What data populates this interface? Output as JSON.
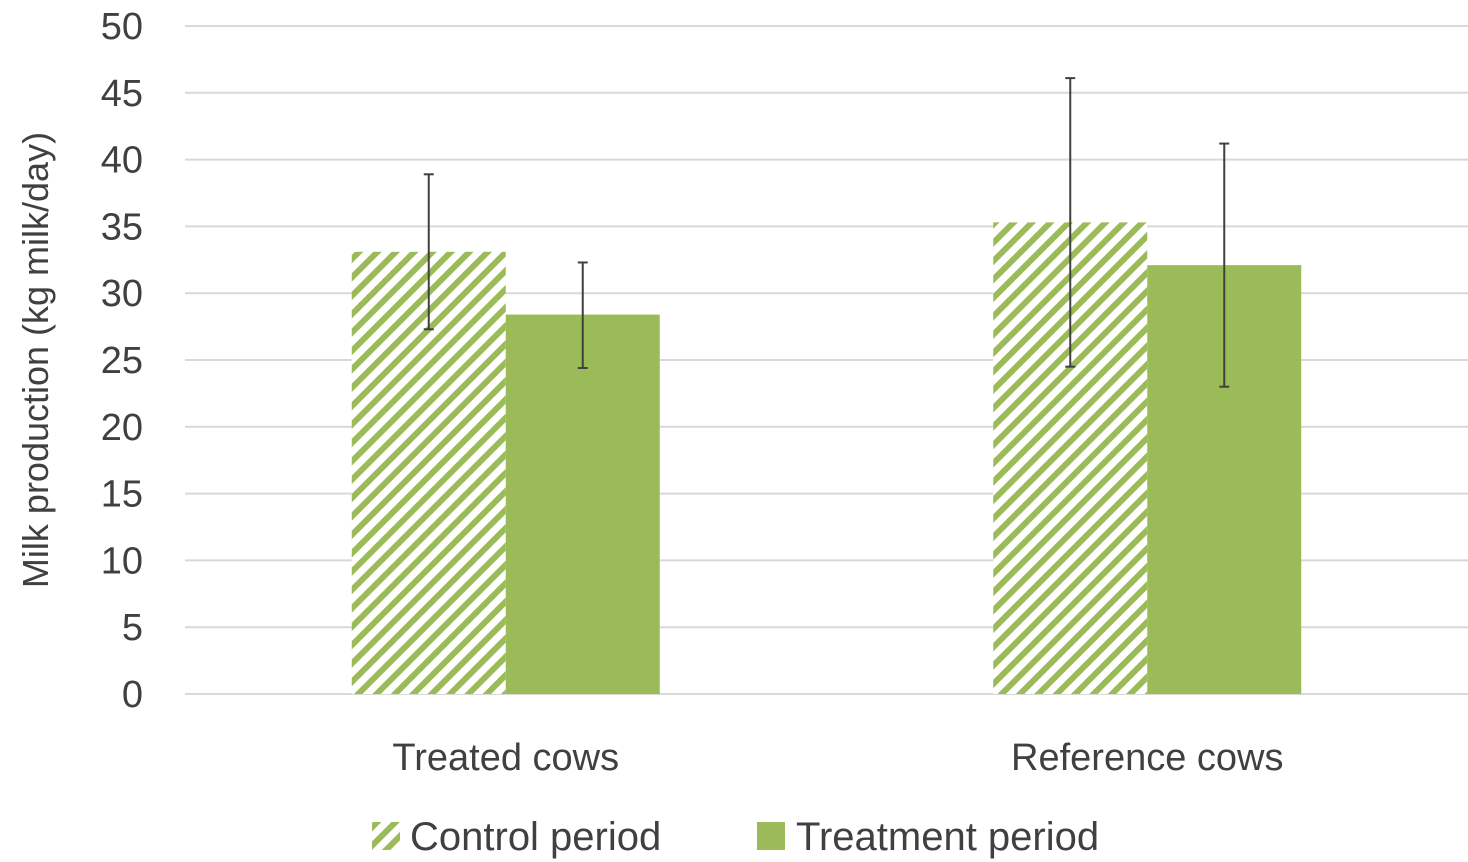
{
  "chart_data": {
    "type": "bar",
    "title": "",
    "xlabel": "",
    "ylabel": "Milk production (kg milk/day)",
    "ylim": [
      0,
      50
    ],
    "yticks": [
      0,
      5,
      10,
      15,
      20,
      25,
      30,
      35,
      40,
      45,
      50
    ],
    "grid": true,
    "legend_position": "bottom",
    "categories": [
      "Treated cows",
      "Reference cows"
    ],
    "series": [
      {
        "name": "Control period",
        "pattern": "diagonal-hatch",
        "color": "#9BBB59",
        "values": [
          33.1,
          35.3
        ],
        "error_low": [
          27.3,
          24.5
        ],
        "error_high": [
          38.9,
          46.1
        ]
      },
      {
        "name": "Treatment period",
        "pattern": "solid",
        "color": "#9BBB59",
        "values": [
          28.4,
          32.1
        ],
        "error_low": [
          24.4,
          23.0
        ],
        "error_high": [
          32.3,
          41.2
        ]
      }
    ]
  }
}
